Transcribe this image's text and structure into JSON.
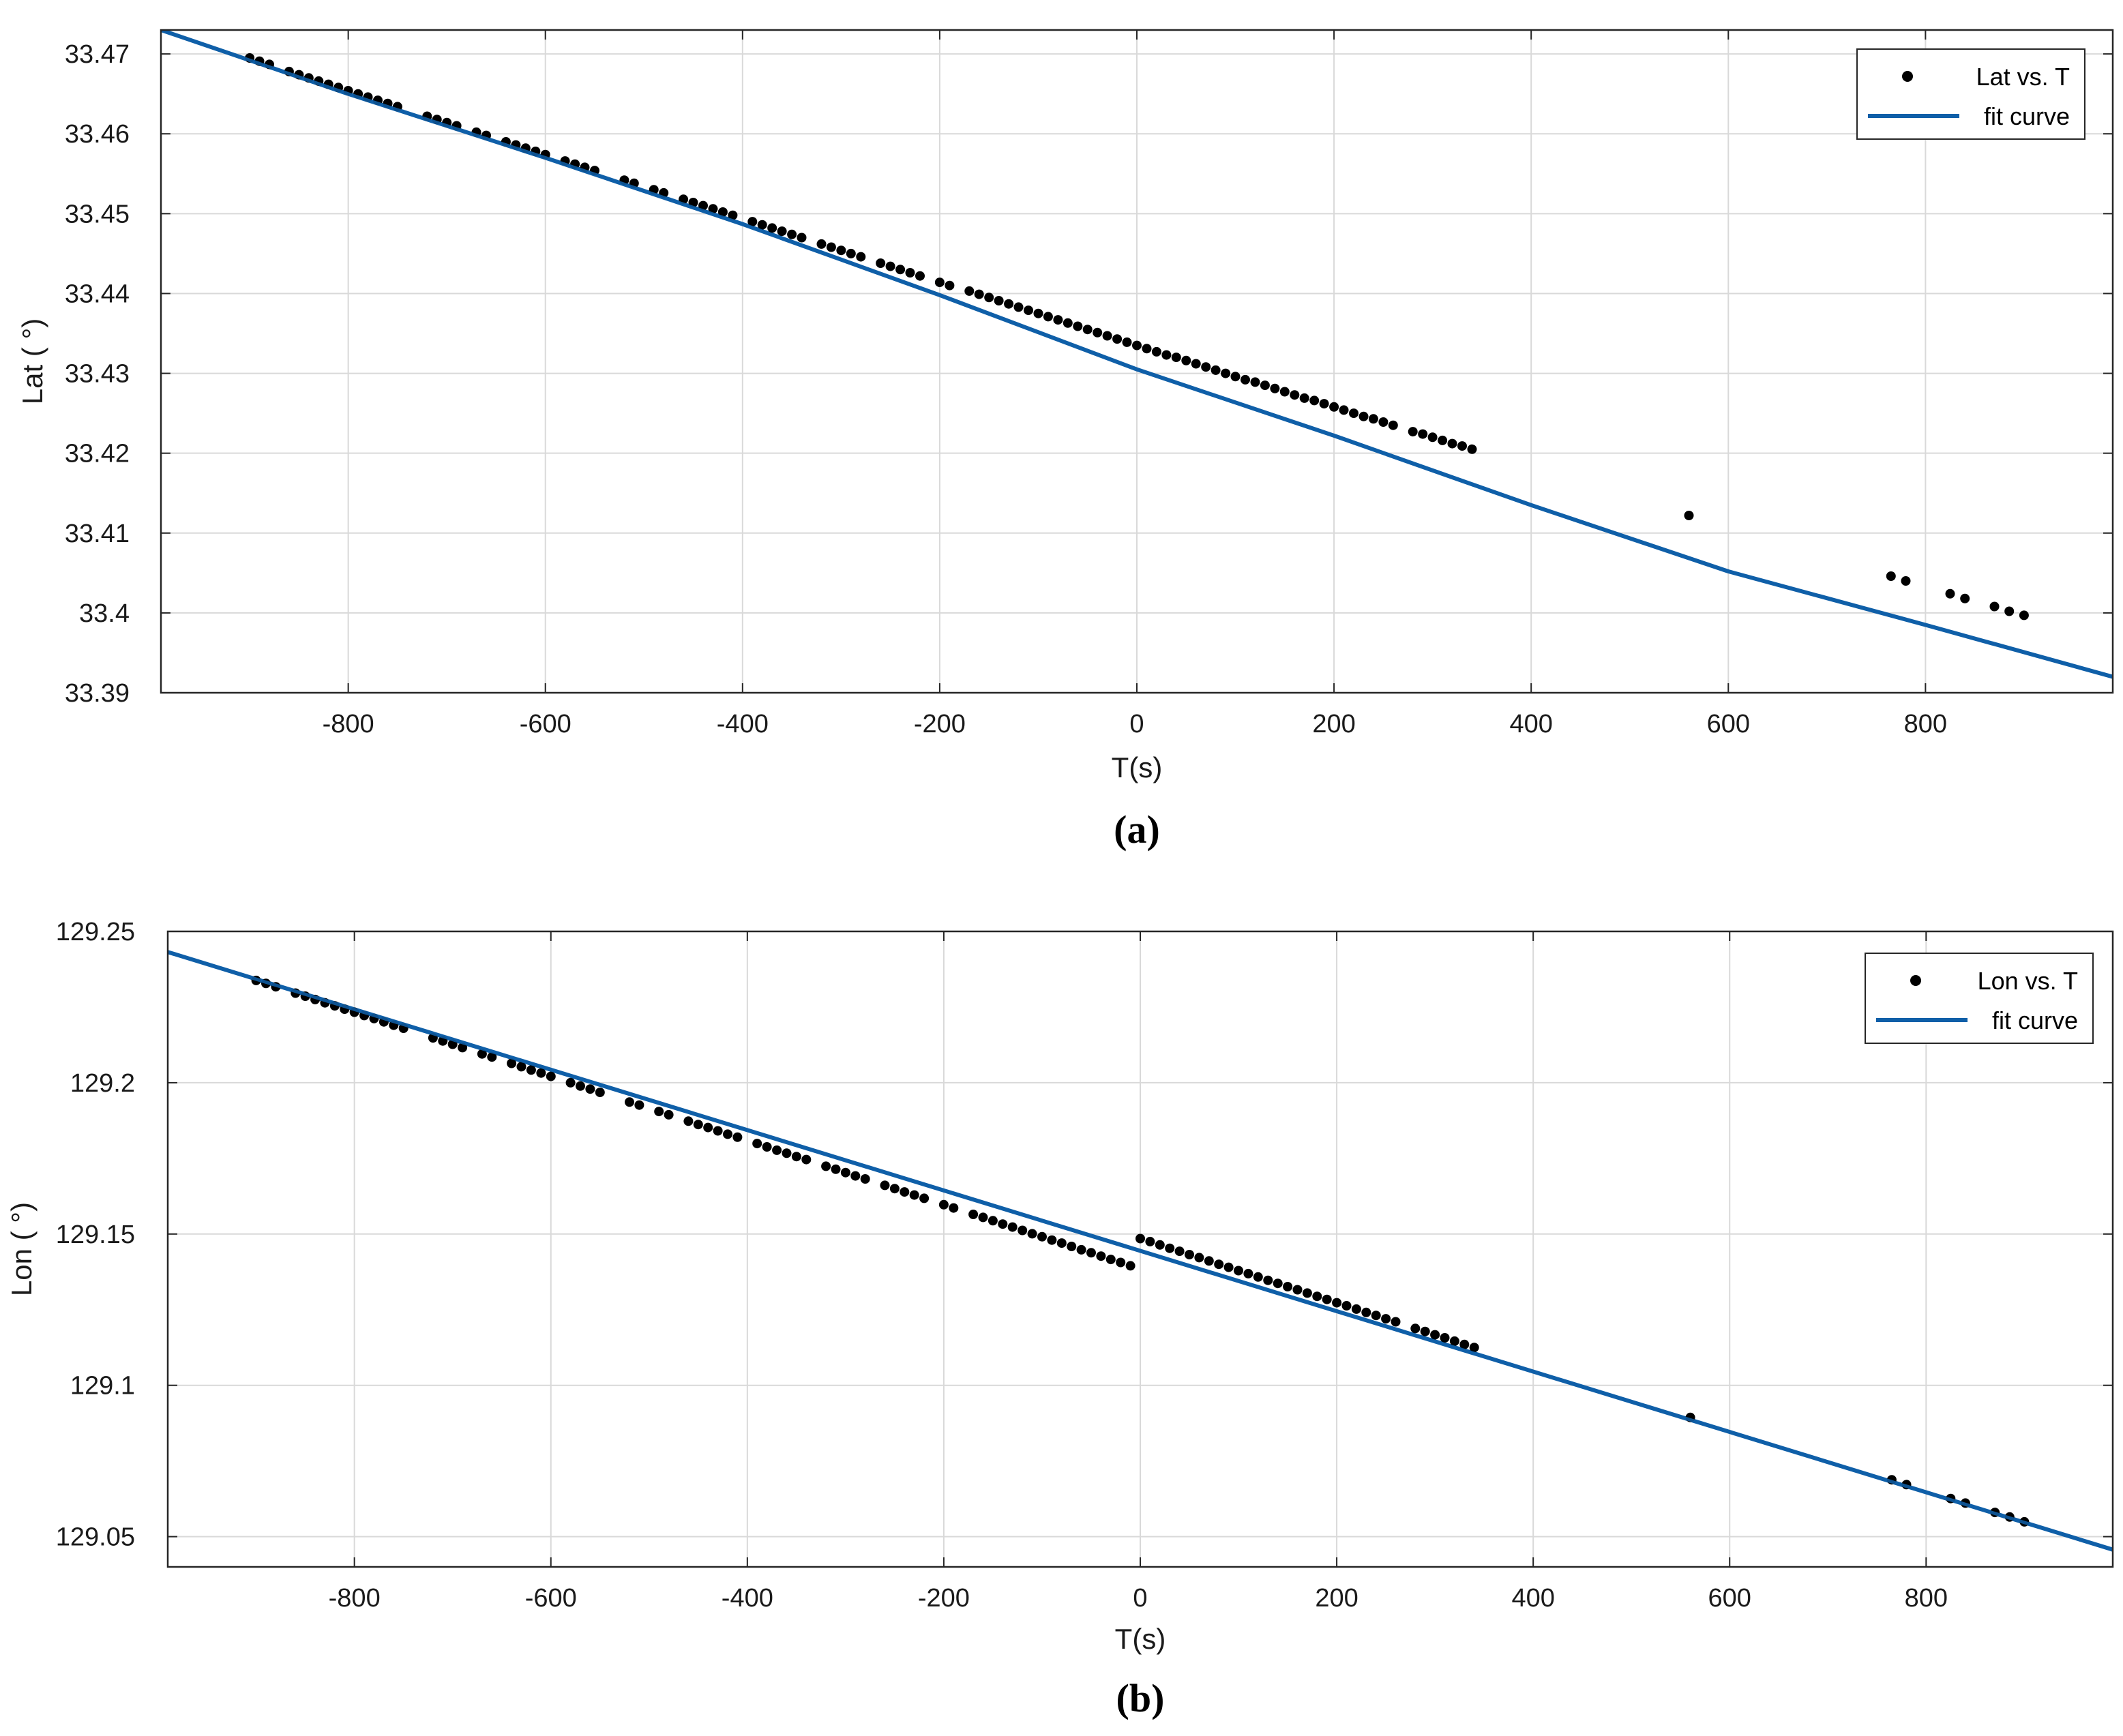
{
  "chart_data": [
    {
      "type": "scatter",
      "panel_label": "(a)",
      "xlabel": "T(s)",
      "ylabel": "Lat ( °)",
      "xlim": [
        -990,
        990
      ],
      "ylim": [
        33.39,
        33.473
      ],
      "x_ticks": [
        -800,
        -600,
        -400,
        -200,
        0,
        200,
        400,
        600,
        800
      ],
      "y_ticks": [
        33.39,
        33.4,
        33.41,
        33.42,
        33.43,
        33.44,
        33.45,
        33.46,
        33.47
      ],
      "y_tick_labels": [
        "33.39",
        "33.4",
        "33.41",
        "33.42",
        "33.43",
        "33.44",
        "33.45",
        "33.46",
        "33.47"
      ],
      "grid": true,
      "legend_position": "top-right",
      "series": [
        {
          "name": "Lat vs. T",
          "kind": "points",
          "color": "#000000",
          "x": [
            -900,
            -890,
            -880,
            -860,
            -850,
            -840,
            -830,
            -820,
            -810,
            -800,
            -790,
            -780,
            -770,
            -760,
            -750,
            -720,
            -710,
            -700,
            -690,
            -670,
            -660,
            -640,
            -630,
            -620,
            -610,
            -600,
            -580,
            -570,
            -560,
            -550,
            -520,
            -510,
            -490,
            -480,
            -460,
            -450,
            -440,
            -430,
            -420,
            -410,
            -390,
            -380,
            -370,
            -360,
            -350,
            -340,
            -320,
            -310,
            -300,
            -290,
            -280,
            -260,
            -250,
            -240,
            -230,
            -220,
            -200,
            -190,
            -170,
            -160,
            -150,
            -140,
            -130,
            -120,
            -110,
            -100,
            -90,
            -80,
            -70,
            -60,
            -50,
            -40,
            -30,
            -20,
            -10,
            0,
            10,
            20,
            30,
            40,
            50,
            60,
            70,
            80,
            90,
            100,
            110,
            120,
            130,
            140,
            150,
            160,
            170,
            180,
            190,
            200,
            210,
            220,
            230,
            240,
            250,
            260,
            280,
            290,
            300,
            310,
            320,
            330,
            340,
            560,
            765,
            780,
            825,
            840,
            870,
            885,
            900
          ],
          "y": [
            33.4695,
            33.4691,
            33.4687,
            33.4678,
            33.4674,
            33.467,
            33.4666,
            33.4662,
            33.4658,
            33.4654,
            33.465,
            33.4646,
            33.4642,
            33.4638,
            33.4634,
            33.4622,
            33.4618,
            33.4614,
            33.461,
            33.4602,
            33.4598,
            33.459,
            33.4586,
            33.4582,
            33.4578,
            33.4574,
            33.4566,
            33.4562,
            33.4558,
            33.4554,
            33.4542,
            33.4538,
            33.453,
            33.4526,
            33.4518,
            33.4514,
            33.451,
            33.4506,
            33.4502,
            33.4498,
            33.449,
            33.4486,
            33.4482,
            33.4478,
            33.4474,
            33.447,
            33.4462,
            33.4458,
            33.4454,
            33.445,
            33.4446,
            33.4438,
            33.4434,
            33.443,
            33.4426,
            33.4422,
            33.4414,
            33.441,
            33.4403,
            33.4399,
            33.4395,
            33.4391,
            33.4387,
            33.4383,
            33.4379,
            33.4375,
            33.4371,
            33.4367,
            33.4363,
            33.4359,
            33.4355,
            33.4351,
            33.4347,
            33.4343,
            33.4339,
            33.4335,
            33.4331,
            33.4327,
            33.4323,
            33.432,
            33.4316,
            33.4312,
            33.4308,
            33.4304,
            33.43,
            33.4296,
            33.4292,
            33.4289,
            33.4285,
            33.4281,
            33.4277,
            33.4273,
            33.4269,
            33.4266,
            33.4262,
            33.4258,
            33.4254,
            33.425,
            33.4246,
            33.4243,
            33.4239,
            33.4235,
            33.4227,
            33.4224,
            33.422,
            33.4216,
            33.4212,
            33.4209,
            33.4205,
            33.4122,
            33.4046,
            33.404,
            33.4024,
            33.4018,
            33.4008,
            33.4002,
            33.3997
          ]
        },
        {
          "name": "fit curve",
          "kind": "line",
          "color": "#0f5fa8",
          "x": [
            -990,
            -800,
            -600,
            -400,
            -200,
            0,
            200,
            400,
            600,
            800,
            990
          ],
          "y": [
            33.473,
            33.465,
            33.457,
            33.4487,
            33.4398,
            33.4305,
            33.4222,
            33.4135,
            33.4052,
            33.3985,
            33.392
          ]
        }
      ]
    },
    {
      "type": "scatter",
      "panel_label": "(b)",
      "xlabel": "T(s)",
      "ylabel": "Lon ( °)",
      "xlim": [
        -990,
        990
      ],
      "ylim": [
        129.04,
        129.25
      ],
      "x_ticks": [
        -800,
        -600,
        -400,
        -200,
        0,
        200,
        400,
        600,
        800
      ],
      "y_ticks": [
        129.05,
        129.1,
        129.15,
        129.2,
        129.25
      ],
      "y_tick_labels": [
        "129.05",
        "129.1",
        "129.15",
        "129.2",
        "129.25"
      ],
      "grid": true,
      "legend_position": "top-right",
      "series": [
        {
          "name": "Lon vs. T",
          "kind": "points",
          "color": "#000000",
          "x": [
            -900,
            -890,
            -880,
            -860,
            -850,
            -840,
            -830,
            -820,
            -810,
            -800,
            -790,
            -780,
            -770,
            -760,
            -750,
            -720,
            -710,
            -700,
            -690,
            -670,
            -660,
            -640,
            -630,
            -620,
            -610,
            -600,
            -580,
            -570,
            -560,
            -550,
            -520,
            -510,
            -490,
            -480,
            -460,
            -450,
            -440,
            -430,
            -420,
            -410,
            -390,
            -380,
            -370,
            -360,
            -350,
            -340,
            -320,
            -310,
            -300,
            -290,
            -280,
            -260,
            -250,
            -240,
            -230,
            -220,
            -200,
            -190,
            -170,
            -160,
            -150,
            -140,
            -130,
            -120,
            -110,
            -100,
            -90,
            -80,
            -70,
            -60,
            -50,
            -40,
            -30,
            -20,
            -10,
            0,
            10,
            20,
            30,
            40,
            50,
            60,
            70,
            80,
            90,
            100,
            110,
            120,
            130,
            140,
            150,
            160,
            170,
            180,
            190,
            200,
            210,
            220,
            230,
            240,
            250,
            260,
            280,
            290,
            300,
            310,
            320,
            330,
            340,
            560,
            765,
            780,
            825,
            840,
            870,
            885,
            900
          ],
          "y": [
            129.2338,
            129.2328,
            129.2317,
            129.2296,
            129.2286,
            129.2275,
            129.2264,
            129.2254,
            129.2243,
            129.2233,
            129.2222,
            129.2212,
            129.2201,
            129.219,
            129.218,
            129.2148,
            129.2138,
            129.2127,
            129.2116,
            129.2095,
            129.2085,
            129.2064,
            129.2053,
            129.2042,
            129.2032,
            129.2021,
            129.2,
            129.1989,
            129.1979,
            129.1968,
            129.1936,
            129.1926,
            129.1905,
            129.1894,
            129.1873,
            129.1862,
            129.1852,
            129.1841,
            129.183,
            129.182,
            129.1799,
            129.1788,
            129.1777,
            129.1767,
            129.1756,
            129.1746,
            129.1724,
            129.1714,
            129.1703,
            129.1692,
            129.1682,
            129.1661,
            129.165,
            129.1639,
            129.1629,
            129.1618,
            129.1597,
            129.1586,
            129.1565,
            129.1555,
            129.1544,
            129.1533,
            129.1523,
            129.1512,
            129.1501,
            129.1491,
            129.148,
            129.147,
            129.1459,
            129.1448,
            129.1438,
            129.1427,
            129.1416,
            129.1406,
            129.1395,
            129.1485,
            129.1475,
            129.1464,
            129.1453,
            129.1443,
            129.1432,
            129.1422,
            129.1411,
            129.14,
            129.139,
            129.1379,
            129.1369,
            129.1358,
            129.1347,
            129.1337,
            129.1326,
            129.1316,
            129.1305,
            129.1294,
            129.1284,
            129.1273,
            129.1263,
            129.1252,
            129.1241,
            129.1231,
            129.122,
            129.121,
            129.1188,
            129.1178,
            129.1167,
            129.1157,
            129.1146,
            129.1135,
            129.1125,
            129.0894,
            129.0688,
            129.0672,
            129.0626,
            129.0611,
            129.058,
            129.0565,
            129.0549
          ]
        },
        {
          "name": "fit curve",
          "kind": "line",
          "color": "#0f5fa8",
          "x": [
            -990,
            990
          ],
          "y": [
            129.2432,
            129.0457
          ]
        }
      ]
    }
  ]
}
